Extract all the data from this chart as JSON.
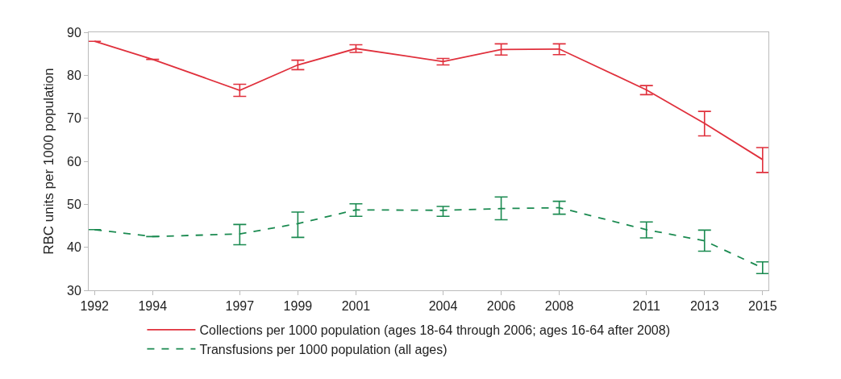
{
  "chart_data": {
    "type": "line",
    "ylabel": "RBC units per 1000 population",
    "x": [
      1992,
      1994,
      1997,
      1999,
      2001,
      2004,
      2006,
      2008,
      2011,
      2013,
      2015
    ],
    "xlim": [
      1991.8,
      2015.2
    ],
    "xticks": [
      1992,
      1994,
      1997,
      1999,
      2001,
      2004,
      2006,
      2008,
      2011,
      2013,
      2015
    ],
    "ylim": [
      30,
      90
    ],
    "yticks": [
      30,
      40,
      50,
      60,
      70,
      80,
      90
    ],
    "grid": false,
    "legend": "bottom",
    "marker": "none",
    "series": [
      {
        "name": "Collections per 1000 population (ages 18-64 through 2006; ages 16-64 after 2008)",
        "color": "#e0303c",
        "line_style": "solid",
        "values": [
          87.9,
          83.7,
          76.5,
          82.4,
          86.2,
          83.2,
          86.0,
          86.1,
          76.6,
          68.8,
          60.4
        ],
        "errors": [
          null,
          null,
          [
            75.1,
            77.9
          ],
          [
            81.3,
            83.5
          ],
          [
            85.3,
            87.1
          ],
          [
            82.4,
            83.9
          ],
          [
            84.7,
            87.3
          ],
          [
            84.8,
            87.3
          ],
          [
            75.5,
            77.6
          ],
          [
            65.9,
            71.6
          ],
          [
            57.4,
            63.2
          ]
        ]
      },
      {
        "name": "Transfusions per 1000 population (all ages)",
        "color": "#1a8a50",
        "line_style": "dashed",
        "values": [
          44.1,
          42.5,
          43.1,
          45.5,
          48.7,
          48.6,
          49.0,
          49.2,
          44.1,
          41.5,
          35.2
        ],
        "errors": [
          null,
          null,
          [
            40.6,
            45.3
          ],
          [
            42.3,
            48.2
          ],
          [
            47.2,
            50.1
          ],
          [
            47.2,
            49.5
          ],
          [
            46.4,
            51.7
          ],
          [
            47.7,
            50.7
          ],
          [
            42.2,
            45.9
          ],
          [
            39.1,
            44.0
          ],
          [
            33.9,
            36.6
          ]
        ]
      }
    ]
  }
}
